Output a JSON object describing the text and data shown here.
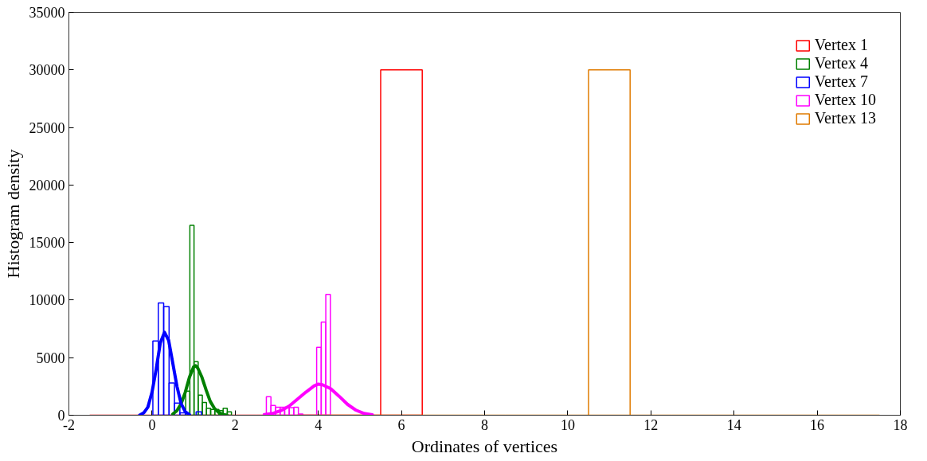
{
  "chart_data": {
    "type": "histogram",
    "xlabel": "Ordinates of vertices",
    "ylabel": "Histogram density",
    "xlim": [
      -2,
      18
    ],
    "ylim": [
      0,
      35000
    ],
    "xticks": [
      -2,
      0,
      2,
      4,
      6,
      8,
      10,
      12,
      14,
      16,
      18
    ],
    "yticks": [
      0,
      5000,
      10000,
      15000,
      20000,
      25000,
      30000,
      35000
    ],
    "grid": false,
    "legend": "top right",
    "series": [
      {
        "name": "Vertex 1",
        "color": "#ff0000",
        "bins": [
          -1.5,
          -0.5,
          0.5,
          1.5,
          2.5,
          3.5,
          4.5,
          5.5,
          6.5
        ],
        "values": [
          0,
          0,
          0,
          0,
          0,
          0,
          0,
          30000
        ]
      },
      {
        "name": "Vertex 4",
        "color": "#008000",
        "bins": [
          0.81,
          0.91,
          1.01,
          1.11,
          1.21,
          1.31,
          1.41,
          1.51,
          1.61,
          1.71,
          1.81,
          1.91
        ],
        "values": [
          2100,
          16500,
          4650,
          1750,
          1100,
          600,
          500,
          500,
          400,
          600,
          300
        ]
      },
      {
        "name": "Vertex 7",
        "color": "#0000ff",
        "bins": [
          0.02,
          0.15,
          0.28,
          0.41,
          0.54,
          0.67,
          0.8,
          0.93,
          1.06,
          1.19
        ],
        "values": [
          6450,
          9750,
          9450,
          2800,
          1050,
          200,
          null,
          null,
          300
        ]
      },
      {
        "name": "Vertex 10",
        "color": "#ff00ff",
        "bins": [
          2.75,
          2.86,
          2.97,
          3.08,
          3.19,
          3.3,
          3.41,
          3.52,
          3.63,
          3.74,
          3.85,
          3.96,
          4.07,
          4.18,
          4.29
        ],
        "values": [
          1600,
          850,
          700,
          700,
          700,
          650,
          700,
          100,
          0,
          0,
          0,
          5900,
          8100,
          10500
        ]
      },
      {
        "name": "Vertex 13",
        "color": "#e07b00",
        "bins": [
          3.5,
          4.5,
          5.5,
          6.5,
          7.5,
          8.5,
          9.5,
          10.5,
          11.5,
          12.5,
          13.5,
          14.5,
          15.5,
          16.5,
          17.5
        ],
        "values": [
          0,
          0,
          0,
          0,
          0,
          0,
          0,
          30000,
          0,
          0,
          0,
          0,
          0,
          0
        ]
      },
      {
        "color": "#008000",
        "type": "line",
        "x": [
          0.5,
          0.6,
          0.7,
          0.8,
          0.9,
          1.0,
          1.05,
          1.1,
          1.2,
          1.3,
          1.4,
          1.5,
          1.6,
          1.7,
          1.8
        ],
        "values": [
          100,
          400,
          1000,
          2000,
          3300,
          4200,
          4300,
          4100,
          3300,
          2200,
          1200,
          600,
          250,
          80,
          0
        ]
      },
      {
        "color": "#0000ff",
        "type": "line",
        "x": [
          -0.3,
          -0.2,
          -0.1,
          0,
          0.1,
          0.2,
          0.3,
          0.4,
          0.5,
          0.6,
          0.7,
          0.8,
          0.9
        ],
        "values": [
          0,
          200,
          700,
          2000,
          4000,
          6300,
          7200,
          6500,
          4500,
          2500,
          1000,
          300,
          50
        ]
      },
      {
        "color": "#ff00ff",
        "type": "line",
        "x": [
          2.7,
          2.9,
          3.1,
          3.3,
          3.5,
          3.7,
          3.9,
          4.0,
          4.1,
          4.3,
          4.5,
          4.7,
          4.9,
          5.1,
          5.3
        ],
        "values": [
          50,
          150,
          400,
          800,
          1400,
          2000,
          2550,
          2700,
          2650,
          2300,
          1650,
          950,
          450,
          150,
          30
        ]
      }
    ]
  }
}
